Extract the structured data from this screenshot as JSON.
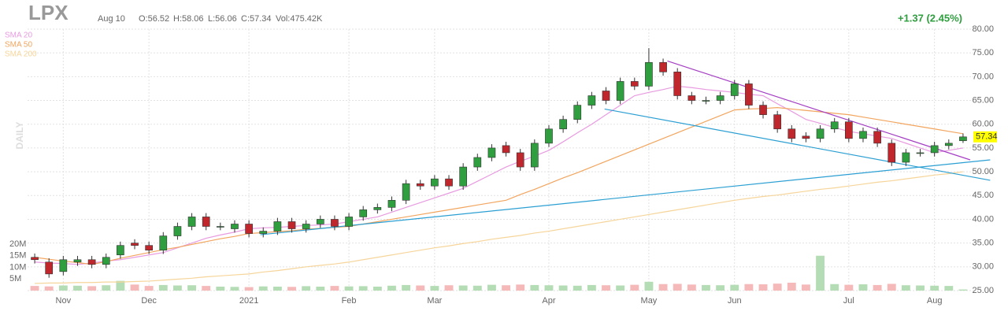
{
  "header": {
    "symbol": "LPX",
    "date": "Aug 10",
    "open": "O:56.52",
    "high": "H:58.06",
    "low": "L:56.06",
    "close": "C:57.34",
    "volume": "Vol:475.42K",
    "change": "+1.37 (2.45%)",
    "interval": "DAILY"
  },
  "chart_data": {
    "type": "candlestick",
    "categories": [
      null,
      null,
      "Nov",
      null,
      null,
      null,
      null,
      null,
      "Dec",
      null,
      null,
      null,
      null,
      null,
      null,
      "2021",
      null,
      null,
      null,
      null,
      null,
      null,
      "Feb",
      null,
      null,
      null,
      null,
      null,
      "Mar",
      null,
      null,
      null,
      null,
      null,
      null,
      null,
      "Apr",
      null,
      null,
      null,
      null,
      null,
      null,
      "May",
      null,
      null,
      null,
      null,
      null,
      "Jun",
      null,
      null,
      null,
      null,
      null,
      null,
      null,
      "Jul",
      null,
      null,
      null,
      null,
      null,
      "Aug",
      null,
      null
    ],
    "open": [
      32,
      31,
      29,
      31,
      31.5,
      30.5,
      32.5,
      35,
      34.5,
      33.5,
      36.5,
      38.5,
      40.5,
      38.5,
      38,
      39,
      37,
      37.5,
      39.5,
      38,
      39,
      40,
      38.5,
      40.5,
      42,
      42.5,
      44,
      47.5,
      47,
      48.5,
      47,
      51,
      53,
      55.5,
      54,
      51,
      56,
      59,
      61,
      64,
      67,
      65,
      69,
      68,
      73,
      71,
      66,
      65,
      65,
      66,
      68.5,
      64,
      62,
      59,
      57.5,
      57,
      59,
      60.5,
      57,
      58.5,
      56,
      52,
      54,
      54,
      55.5,
      56.52
    ],
    "high": [
      32.8,
      31.8,
      32.3,
      32.3,
      32.3,
      32.8,
      35.3,
      35.8,
      35.3,
      37.3,
      39.3,
      41.3,
      41.3,
      39.3,
      39.8,
      39.8,
      38.3,
      40.3,
      40.3,
      39.8,
      40.8,
      40.8,
      41.3,
      42.8,
      43.3,
      44.8,
      48.3,
      48.3,
      49.3,
      49.3,
      51.8,
      53.8,
      55.8,
      56.3,
      54.8,
      56.8,
      59.8,
      61.8,
      64.8,
      66.8,
      67.8,
      69.8,
      69.8,
      76,
      73.8,
      71.8,
      66.8,
      65.8,
      66.8,
      69.3,
      69.3,
      64.8,
      62.8,
      59.8,
      58.3,
      59.8,
      61.3,
      61.3,
      59.3,
      59.3,
      56.8,
      54.8,
      54.8,
      56.3,
      56.8,
      58.06
    ],
    "low": [
      30.7,
      27.7,
      28.2,
      30.2,
      29.7,
      29.7,
      31.7,
      33.7,
      32.7,
      32.7,
      35.7,
      37.7,
      37.7,
      37.7,
      37.2,
      36.2,
      36.2,
      36.7,
      37.2,
      37.2,
      38.2,
      37.7,
      37.7,
      39.7,
      41.2,
      41.7,
      43.2,
      46.2,
      46.2,
      46.2,
      46.2,
      50.2,
      52.2,
      53.2,
      50.2,
      50.2,
      55.2,
      58.2,
      60.2,
      63.2,
      64.2,
      64.2,
      67.2,
      67.2,
      70.2,
      65.2,
      64.2,
      64.2,
      64.2,
      65.2,
      63.2,
      61.2,
      58.2,
      56.2,
      56.2,
      56.2,
      58.2,
      56.2,
      56.2,
      55.2,
      51.2,
      51.2,
      53.2,
      53.2,
      54.7,
      56.06
    ],
    "close": [
      31.5,
      28.5,
      31.5,
      31.5,
      30.5,
      32,
      34.5,
      34.5,
      33.5,
      36.5,
      38.5,
      40.5,
      38.5,
      38.5,
      39,
      37,
      37.5,
      39.5,
      38,
      39,
      40,
      38.5,
      40.5,
      42,
      42.5,
      44,
      47.5,
      47,
      48.5,
      47,
      51,
      53,
      55,
      54,
      51,
      56,
      59,
      61,
      64,
      66,
      65,
      69,
      68,
      73,
      71,
      66,
      65,
      65,
      66,
      68.5,
      64,
      62,
      59,
      57,
      57,
      59,
      60.5,
      57,
      58.5,
      56,
      52,
      54,
      54,
      55.5,
      56,
      57.34
    ],
    "volume": [
      2000000,
      1800000,
      2200000,
      2100000,
      1900000,
      2300000,
      4200000,
      2600000,
      2000000,
      2400000,
      2200000,
      2300000,
      2000000,
      1700000,
      1600000,
      1500000,
      1800000,
      1700000,
      1600000,
      1900000,
      1700000,
      2000000,
      1800000,
      1900000,
      1700000,
      2100000,
      2400000,
      2200000,
      2000000,
      2300000,
      2200000,
      2100000,
      2500000,
      2300000,
      2600000,
      2400000,
      2300000,
      2200000,
      2100000,
      2400000,
      2300000,
      2200000,
      2500000,
      3800000,
      2800000,
      2900000,
      2600000,
      2400000,
      2300000,
      2500000,
      2800000,
      2700000,
      3000000,
      3400000,
      2600000,
      15000000,
      2800000,
      2500000,
      2700000,
      2400000,
      2900000,
      2300000,
      2200000,
      2100000,
      2000000,
      475420
    ],
    "up_color": "#2e9e3e",
    "down_color": "#c0272d",
    "volume_up_color": "#b5ddb5",
    "volume_down_color": "#f5b9b9",
    "price_tag_color": "#ffff00",
    "ylim": [
      25,
      80
    ],
    "yticks": [
      {
        "value": 25,
        "label": "25.00"
      },
      {
        "value": 30,
        "label": "30.00"
      },
      {
        "value": 35,
        "label": "35.00"
      },
      {
        "value": 40,
        "label": "40.00"
      },
      {
        "value": 45,
        "label": "45.00"
      },
      {
        "value": 50,
        "label": "50.00"
      },
      {
        "value": 55,
        "label": "55.00"
      },
      {
        "value": 60,
        "label": "60.00"
      },
      {
        "value": 65,
        "label": "65.00"
      },
      {
        "value": 70,
        "label": "70.00"
      },
      {
        "value": 75,
        "label": "75.00"
      },
      {
        "value": 80,
        "label": "80.00"
      }
    ],
    "y2lim": [
      0,
      20000000
    ],
    "y2ticks": [
      {
        "value": 5000000,
        "label": "5M"
      },
      {
        "value": 10000000,
        "label": "10M"
      },
      {
        "value": 15000000,
        "label": "15M"
      },
      {
        "value": 20000000,
        "label": "20M"
      }
    ],
    "grid": true,
    "series": [
      {
        "name": "SMA 20",
        "color": "#e89be0",
        "values": [
          31,
          30.8,
          30.7,
          30.5,
          30.8,
          31.2,
          31.5,
          32,
          32.5,
          33,
          34,
          35,
          36,
          36.7,
          37.3,
          38,
          38.2,
          38.3,
          38.5,
          38.7,
          38.8,
          39,
          39.5,
          40,
          40.5,
          41.5,
          42.5,
          43.5,
          44.5,
          45.5,
          46.5,
          48,
          49.5,
          51,
          52.2,
          53.3,
          54.5,
          56.3,
          58.2,
          60,
          62,
          64,
          66,
          66.7,
          67.3,
          68,
          67.7,
          67.3,
          67,
          66.7,
          66.3,
          66,
          64.3,
          62.7,
          61,
          60.2,
          59.3,
          58.5,
          58,
          57.5,
          57,
          56,
          55,
          54,
          54.5,
          55
        ]
      },
      {
        "name": "SMA 50",
        "color": "#f2a55e",
        "values": [
          32,
          31.6,
          31.2,
          30.9,
          30.5,
          31.1,
          31.8,
          32.4,
          33,
          33.6,
          34.1,
          34.7,
          35.3,
          35.9,
          36.4,
          37,
          37.2,
          37.4,
          37.6,
          37.9,
          38.1,
          38.3,
          38.5,
          39,
          39.5,
          40,
          40.5,
          41,
          41.5,
          42,
          42.5,
          43,
          43.5,
          44,
          45.2,
          46.3,
          47.5,
          48.7,
          49.8,
          51,
          52.2,
          53.4,
          54.6,
          55.8,
          57,
          58.2,
          59.4,
          60.6,
          61.8,
          63,
          63.2,
          63.3,
          63.5,
          63.2,
          62.9,
          62.6,
          62.3,
          62,
          61.5,
          61,
          60.5,
          60,
          59.5,
          59,
          58.5,
          58
        ]
      },
      {
        "name": "SMA 200",
        "color": "#f6d59a",
        "values": [
          26.5,
          26.6,
          26.6,
          26.7,
          26.7,
          26.8,
          26.8,
          26.9,
          27,
          27.2,
          27.4,
          27.6,
          27.9,
          28.1,
          28.3,
          28.5,
          28.9,
          29.2,
          29.6,
          30,
          30.3,
          30.6,
          31,
          31.5,
          32,
          32.5,
          33,
          33.5,
          34,
          34.4,
          34.9,
          35.3,
          35.8,
          36.2,
          36.6,
          37.1,
          37.5,
          38,
          38.5,
          39,
          39.5,
          40,
          40.5,
          41,
          41.5,
          42,
          42.5,
          43,
          43.5,
          44,
          44.4,
          44.8,
          45.1,
          45.5,
          45.9,
          46.3,
          46.6,
          47,
          47.4,
          47.8,
          48.1,
          48.5,
          48.9,
          49.3,
          49.6,
          50
        ]
      }
    ],
    "trendlines": [
      {
        "color": "#a53fc4",
        "x": [
          44.3,
          65.5
        ],
        "values": [
          73.3,
          52.5
        ]
      },
      {
        "color": "#2b9fd3",
        "x": [
          39.9,
          66.9
        ],
        "values": [
          63.2,
          48.2
        ]
      },
      {
        "color": "#2b9fd3",
        "x": [
          15.8,
          66.9
        ],
        "values": [
          36.75,
          52.5
        ]
      }
    ]
  }
}
